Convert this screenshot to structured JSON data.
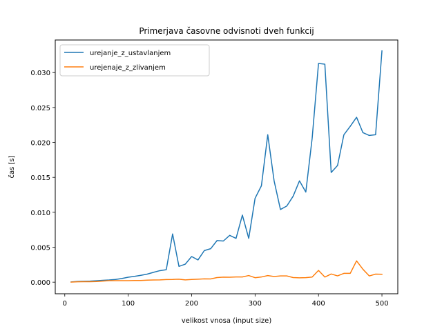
{
  "chart_data": {
    "type": "line",
    "title": "Primerjava časovne odvisnoti dveh funkcij",
    "xlabel": "velikost vnosa (input size)",
    "ylabel": "čas [s]",
    "xlim": [
      -15,
      525
    ],
    "ylim": [
      -0.00166,
      0.03466
    ],
    "x_ticks": [
      {
        "value": 0,
        "label": "0"
      },
      {
        "value": 100,
        "label": "100"
      },
      {
        "value": 200,
        "label": "200"
      },
      {
        "value": 300,
        "label": "300"
      },
      {
        "value": 400,
        "label": "400"
      },
      {
        "value": 500,
        "label": "500"
      }
    ],
    "y_ticks": [
      {
        "value": 0.0,
        "label": "0.000"
      },
      {
        "value": 0.005,
        "label": "0.005"
      },
      {
        "value": 0.01,
        "label": "0.010"
      },
      {
        "value": 0.015,
        "label": "0.015"
      },
      {
        "value": 0.02,
        "label": "0.020"
      },
      {
        "value": 0.025,
        "label": "0.025"
      },
      {
        "value": 0.03,
        "label": "0.030"
      }
    ],
    "grid": false,
    "legend_position": "upper-left",
    "x": [
      10,
      20,
      30,
      40,
      50,
      60,
      70,
      80,
      90,
      100,
      110,
      120,
      130,
      140,
      150,
      160,
      170,
      180,
      190,
      200,
      210,
      220,
      230,
      240,
      250,
      260,
      270,
      280,
      290,
      300,
      310,
      320,
      330,
      340,
      350,
      360,
      370,
      380,
      390,
      400,
      410,
      420,
      430,
      440,
      450,
      460,
      470,
      480,
      490,
      500
    ],
    "series": [
      {
        "name": "urejanje_z_ustavlanjem",
        "color": "#1f77b4",
        "values": [
          3e-05,
          0.0001,
          0.00013,
          0.00015,
          0.0002,
          0.00027,
          0.00031,
          0.00039,
          0.00052,
          0.00071,
          0.00083,
          0.00098,
          0.00115,
          0.00141,
          0.00165,
          0.00178,
          0.0069,
          0.00226,
          0.00258,
          0.00367,
          0.00318,
          0.00452,
          0.00479,
          0.00595,
          0.00589,
          0.0067,
          0.00627,
          0.0096,
          0.00627,
          0.012,
          0.0138,
          0.0211,
          0.0145,
          0.0104,
          0.0109,
          0.0123,
          0.0145,
          0.0129,
          0.0206,
          0.0313,
          0.0312,
          0.0157,
          0.0167,
          0.0211,
          0.0223,
          0.0236,
          0.0214,
          0.021,
          0.0211,
          0.0331
        ]
      },
      {
        "name": "urejenaje_z_zlivanjem",
        "color": "#ff7f0e",
        "values": [
          1e-05,
          5e-05,
          7e-05,
          7e-05,
          9e-05,
          0.00015,
          0.00021,
          0.00022,
          0.00022,
          0.00022,
          0.00024,
          0.00024,
          0.00029,
          0.00031,
          0.00033,
          0.00037,
          0.00039,
          0.00043,
          0.00033,
          0.00039,
          0.00043,
          0.00048,
          0.00046,
          0.00066,
          0.00072,
          0.00071,
          0.00075,
          0.00075,
          0.00095,
          0.00064,
          0.00074,
          0.00094,
          0.00081,
          0.00089,
          0.00089,
          0.00066,
          0.00062,
          0.00065,
          0.00073,
          0.00168,
          0.00073,
          0.00117,
          0.0009,
          0.00126,
          0.00126,
          0.00305,
          0.00185,
          0.00089,
          0.00115,
          0.00113
        ]
      }
    ]
  }
}
